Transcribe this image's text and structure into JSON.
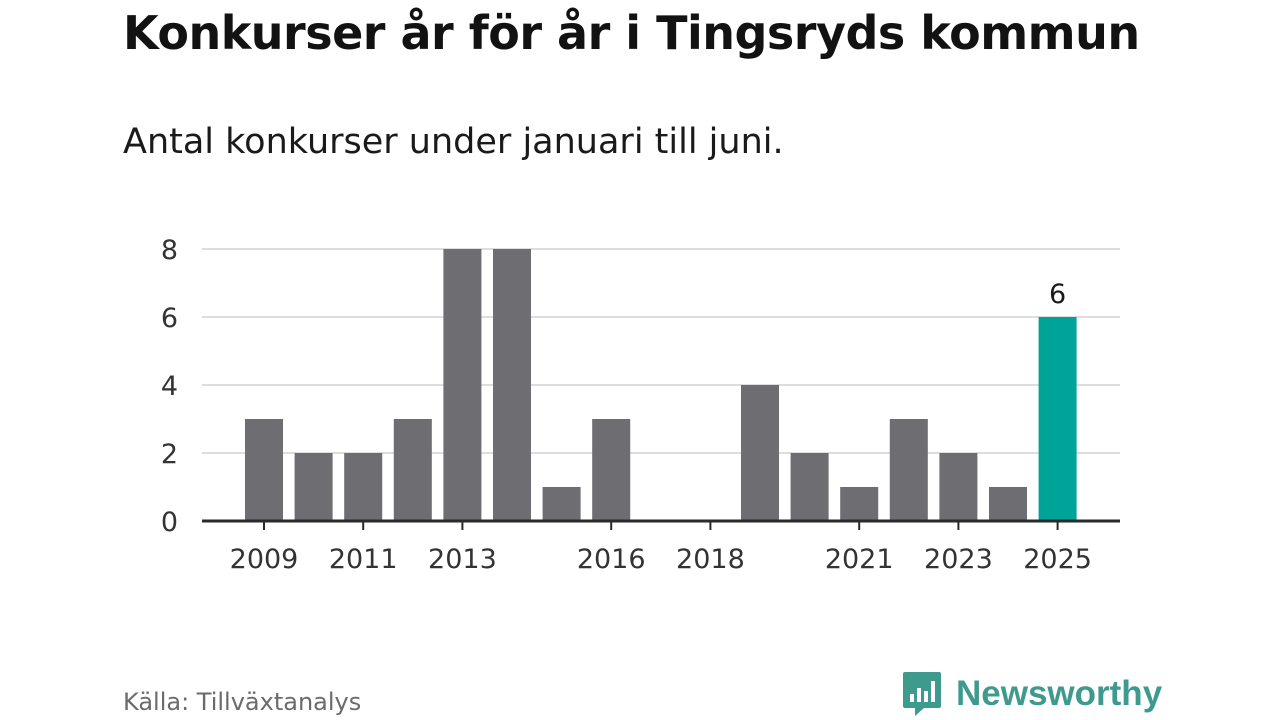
{
  "title": "Konkurser år för år i Tingsryds kommun",
  "subtitle": "Antal konkurser under januari till juni.",
  "source": "Källa: Tillväxtanalys",
  "brand": "Newsworthy",
  "colors": {
    "bar": "#6e6d72",
    "highlight": "#00a398",
    "grid": "#dddddd",
    "axis": "#2a2a2a",
    "brand": "#3f9a8e"
  },
  "chart_data": {
    "type": "bar",
    "title": "Konkurser år för år i Tingsryds kommun",
    "subtitle": "Antal konkurser under januari till juni.",
    "categories": [
      "2009",
      "2010",
      "2011",
      "2012",
      "2013",
      "2014",
      "2015",
      "2016",
      "2017",
      "2018",
      "2019",
      "2020",
      "2021",
      "2022",
      "2023",
      "2024",
      "2025"
    ],
    "values": [
      3,
      2,
      2,
      3,
      8,
      8,
      1,
      3,
      0,
      0,
      4,
      2,
      1,
      3,
      2,
      1,
      6
    ],
    "x_tick_labels": [
      "2009",
      "2011",
      "2013",
      "2016",
      "2018",
      "2021",
      "2023",
      "2025"
    ],
    "y_ticks": [
      0,
      2,
      4,
      6,
      8
    ],
    "ylim": [
      0,
      8
    ],
    "highlight": {
      "category": "2025",
      "label": "6"
    },
    "grid": true
  }
}
